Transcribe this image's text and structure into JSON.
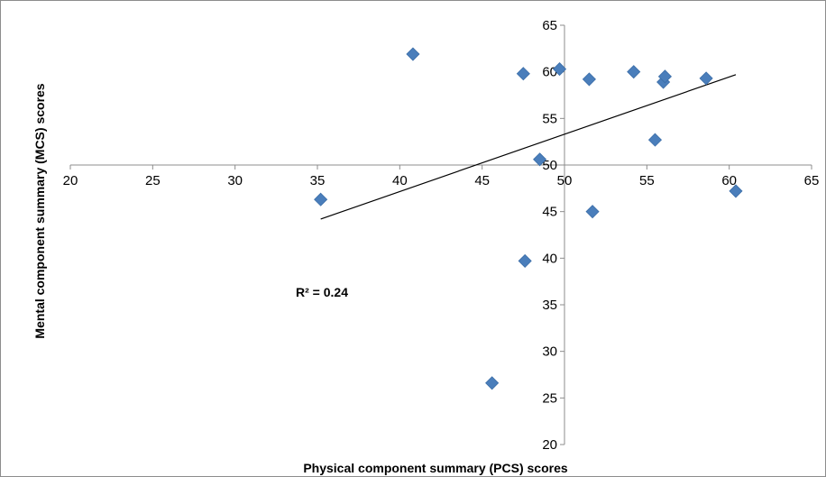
{
  "chart_data": {
    "type": "scatter",
    "xlabel": "Physical component summary (PCS) scores",
    "ylabel": "Mental component summary (MCS)  scores",
    "xlim": [
      20,
      65
    ],
    "ylim": [
      20,
      65
    ],
    "x_ticks": [
      "20",
      "25",
      "30",
      "35",
      "40",
      "45",
      "50",
      "55",
      "60",
      "65"
    ],
    "y_ticks": [
      "20",
      "25",
      "30",
      "35",
      "40",
      "45",
      "50",
      "55",
      "60",
      "65"
    ],
    "axes_cross_at": {
      "x": 50,
      "y": 50
    },
    "grid": false,
    "marker_color": "#4a7ebb",
    "points": [
      {
        "x": 35.2,
        "y": 46.3
      },
      {
        "x": 40.8,
        "y": 61.9
      },
      {
        "x": 45.6,
        "y": 26.6
      },
      {
        "x": 47.5,
        "y": 59.8
      },
      {
        "x": 47.6,
        "y": 39.7
      },
      {
        "x": 48.5,
        "y": 50.6
      },
      {
        "x": 49.7,
        "y": 60.3
      },
      {
        "x": 51.5,
        "y": 59.2
      },
      {
        "x": 51.7,
        "y": 45.0
      },
      {
        "x": 54.2,
        "y": 60.0
      },
      {
        "x": 55.5,
        "y": 52.7
      },
      {
        "x": 56.0,
        "y": 58.9
      },
      {
        "x": 56.1,
        "y": 59.5
      },
      {
        "x": 58.6,
        "y": 59.3
      },
      {
        "x": 60.4,
        "y": 47.2
      }
    ],
    "trendline": {
      "type": "linear",
      "x": [
        35.2,
        60.4
      ],
      "y": [
        44.2,
        59.7
      ]
    },
    "annotation": "R² = 0.24"
  }
}
